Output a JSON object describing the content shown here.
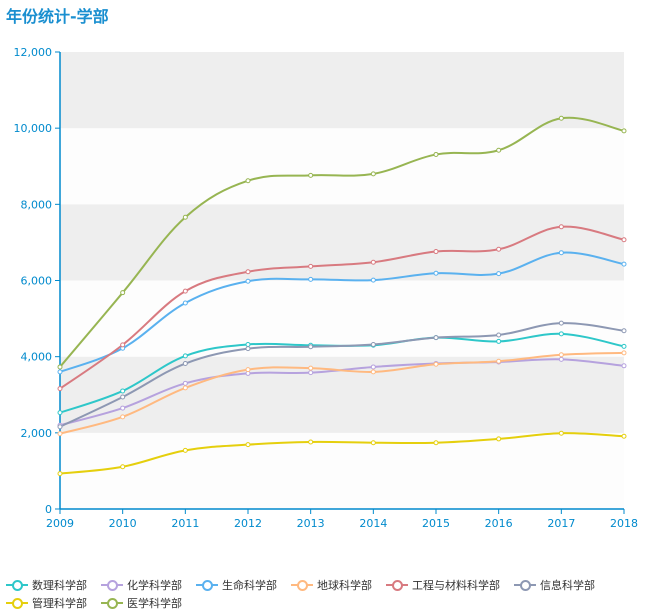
{
  "chart_data": {
    "type": "line",
    "title": "年份统计-学部",
    "categories": [
      "2009",
      "2010",
      "2011",
      "2012",
      "2013",
      "2014",
      "2015",
      "2016",
      "2017",
      "2018"
    ],
    "ylim": [
      0,
      12000
    ],
    "yticks": [
      0,
      2000,
      4000,
      6000,
      8000,
      10000,
      12000
    ],
    "ytick_labels": [
      "0",
      "2,000",
      "4,000",
      "6,000",
      "8,000",
      "10,000",
      "12,000"
    ],
    "grid": true,
    "legend_position": "bottom",
    "series": [
      {
        "name": "数理科学部",
        "color": "#2ec7c9",
        "values": [
          2530,
          3100,
          4020,
          4320,
          4300,
          4300,
          4500,
          4400,
          4600,
          4270
        ]
      },
      {
        "name": "化学科学部",
        "color": "#b6a2de",
        "values": [
          2200,
          2650,
          3300,
          3560,
          3580,
          3730,
          3820,
          3860,
          3930,
          3760
        ]
      },
      {
        "name": "生命科学部",
        "color": "#5ab1ef",
        "values": [
          3600,
          4220,
          5410,
          5980,
          6030,
          6010,
          6190,
          6180,
          6730,
          6430
        ]
      },
      {
        "name": "地球科学部",
        "color": "#ffb980",
        "values": [
          1980,
          2420,
          3180,
          3660,
          3700,
          3600,
          3800,
          3880,
          4050,
          4100
        ]
      },
      {
        "name": "工程与材料科学部",
        "color": "#d87a80",
        "values": [
          3160,
          4310,
          5720,
          6230,
          6370,
          6480,
          6760,
          6820,
          7410,
          7070
        ]
      },
      {
        "name": "信息科学部",
        "color": "#8d98b3",
        "values": [
          2160,
          2940,
          3820,
          4210,
          4260,
          4320,
          4500,
          4570,
          4880,
          4680
        ]
      },
      {
        "name": "管理科学部",
        "color": "#e5cf0d",
        "values": [
          930,
          1110,
          1540,
          1690,
          1760,
          1740,
          1740,
          1840,
          1990,
          1910
        ]
      },
      {
        "name": "医学科学部",
        "color": "#97b552",
        "values": [
          3730,
          5680,
          7660,
          8620,
          8760,
          8800,
          9310,
          9420,
          10260,
          9930
        ]
      }
    ]
  },
  "style": {
    "axis_color": "#008acd",
    "band_color": "#eeeeee",
    "title_color": "#1a8fd0"
  }
}
